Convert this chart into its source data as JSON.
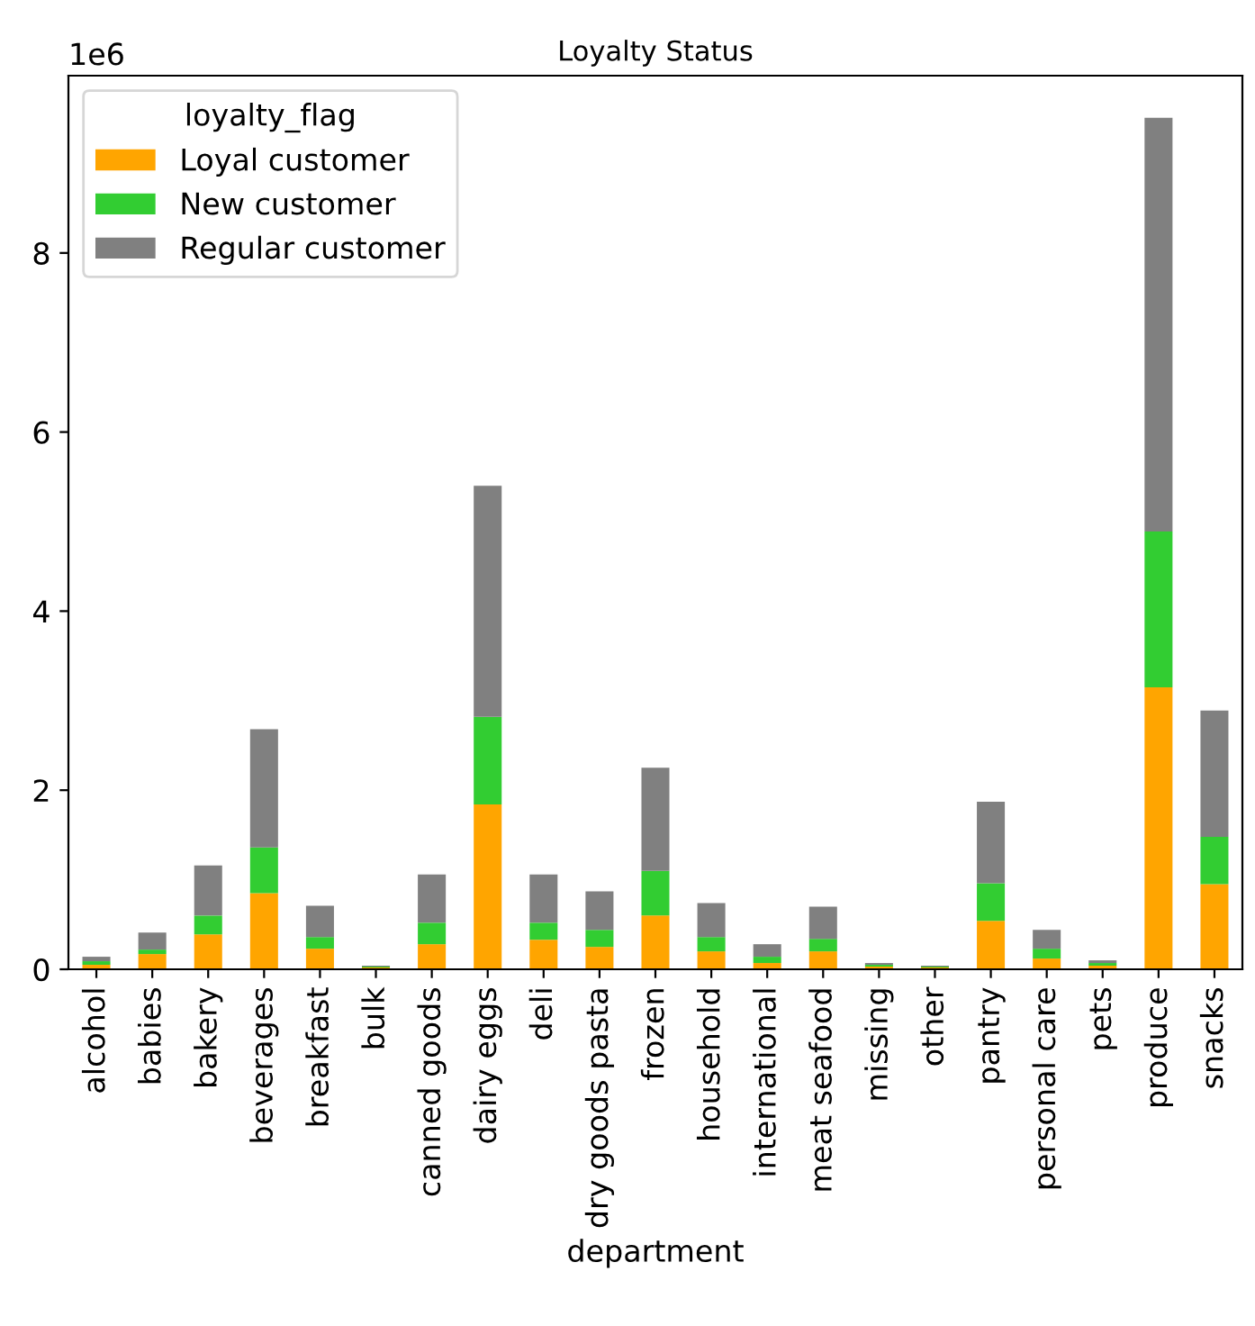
{
  "chart_data": {
    "type": "bar",
    "title": "Loyalty Status",
    "xlabel": "department",
    "legend_title": "loyalty_flag",
    "stacked": true,
    "legend": "top left",
    "grid": false,
    "annotations": [
      "1e6"
    ],
    "categories": [
      "alcohol",
      "babies",
      "bakery",
      "beverages",
      "breakfast",
      "bulk",
      "canned goods",
      "dairy eggs",
      "deli",
      "dry goods pasta",
      "frozen",
      "household",
      "international",
      "meat seafood",
      "missing",
      "other",
      "pantry",
      "personal care",
      "pets",
      "produce",
      "snacks"
    ],
    "series": [
      {
        "name": "Loyal customer",
        "color": "#ffa500",
        "values": [
          0.05,
          0.17,
          0.39,
          0.85,
          0.23,
          0.02,
          0.28,
          1.84,
          0.33,
          0.25,
          0.6,
          0.2,
          0.07,
          0.2,
          0.03,
          0.02,
          0.54,
          0.12,
          0.04,
          3.15,
          0.95
        ]
      },
      {
        "name": "New customer",
        "color": "#32cd32",
        "values": [
          0.04,
          0.05,
          0.21,
          0.51,
          0.13,
          0.01,
          0.24,
          0.98,
          0.19,
          0.19,
          0.5,
          0.16,
          0.07,
          0.14,
          0.02,
          0.01,
          0.42,
          0.11,
          0.03,
          1.74,
          0.53
        ]
      },
      {
        "name": "Regular customer",
        "color": "#808080",
        "values": [
          0.05,
          0.19,
          0.56,
          1.32,
          0.35,
          0.01,
          0.54,
          2.58,
          0.54,
          0.43,
          1.15,
          0.38,
          0.14,
          0.36,
          0.02,
          0.01,
          0.91,
          0.21,
          0.03,
          4.62,
          1.41
        ]
      }
    ],
    "ylim": [
      0,
      9.98
    ],
    "yticks": [
      0,
      2,
      4,
      6,
      8
    ]
  }
}
